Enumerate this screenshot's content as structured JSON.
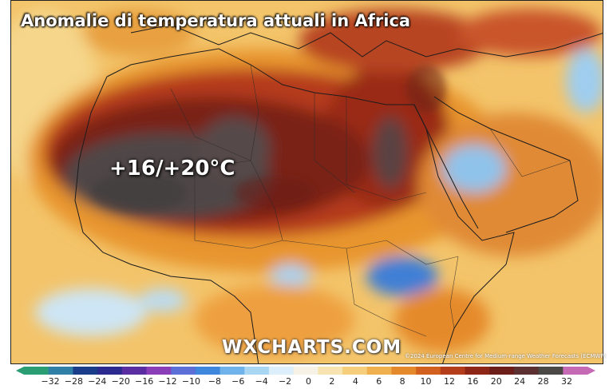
{
  "title": "Anomalie di temperatura attuali in Africa",
  "annotation": "+16/+20°C",
  "logo": "WXCHARTS.COM",
  "credit": "©2024 European Centre for Medium-range Weather Forecasts (ECMWF)",
  "colorbar": {
    "ticks": [
      "−32",
      "−28",
      "−24",
      "−20",
      "−16",
      "−12",
      "−10",
      "−8",
      "−6",
      "−4",
      "−2",
      "0",
      "2",
      "4",
      "6",
      "8",
      "10",
      "12",
      "16",
      "20",
      "24",
      "28",
      "32"
    ],
    "colors": [
      "#2a9d74",
      "#2f7fa6",
      "#1a3d8a",
      "#2a2a8f",
      "#5a2ea0",
      "#8a3fb8",
      "#5b6fd6",
      "#3f86dd",
      "#6fb3ea",
      "#a9d6f2",
      "#dceffa",
      "#f6f2e6",
      "#f7e4b0",
      "#f5cf7c",
      "#f0b04e",
      "#e58a2c",
      "#d2601f",
      "#b43d1c",
      "#8e2617",
      "#6e1e18",
      "#5a3030",
      "#4b4848",
      "#c66ab5"
    ]
  }
}
